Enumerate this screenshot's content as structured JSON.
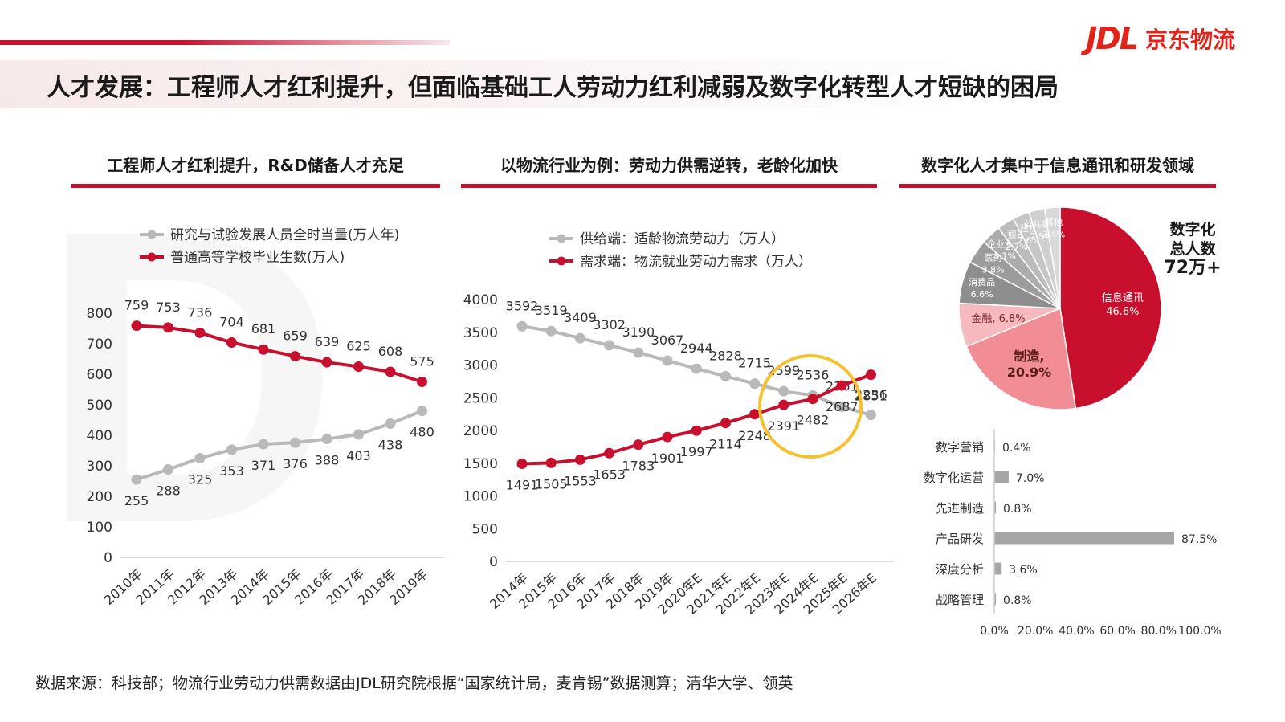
{
  "header": {
    "logo_mark": "JDL",
    "logo_text": "京东物流",
    "page_title": "人才发展：工程师人才红利提升，但面临基础工人劳动力红利减弱及数字化转型人才短缺的困局"
  },
  "sections": {
    "left_title": "工程师人才红利提升，R&D储备人才充足",
    "mid_title": "以物流行业为例：劳动力供需逆转，老龄化加快",
    "right_title": "数字化人才集中于信息通讯和研发领域"
  },
  "digital_total": {
    "line1": "数字化",
    "line2": "总人数",
    "line3": "72万+"
  },
  "source": "数据来源：科技部；物流行业劳动力供需数据由JDL研究院根据“国家统计局，麦肯锡”数据测算；清华大学、领英",
  "colors": {
    "red": "#c8102e",
    "gray": "#b9b9b9",
    "highlight": "#f5c12e"
  },
  "chart_data": [
    {
      "id": "left",
      "type": "line",
      "categories": [
        "2010年",
        "2011年",
        "2012年",
        "2013年",
        "2014年",
        "2015年",
        "2016年",
        "2017年",
        "2018年",
        "2019年"
      ],
      "series": [
        {
          "name": "研究与试验发展人员全时当量(万人年)",
          "color": "#b9b9b9",
          "values": [
            255,
            288,
            325,
            353,
            371,
            376,
            388,
            403,
            438,
            480
          ]
        },
        {
          "name": "普通高等学校毕业生数(万人)",
          "color": "#c8102e",
          "values": [
            759,
            753,
            736,
            704,
            681,
            659,
            639,
            625,
            608,
            575
          ]
        }
      ],
      "yticks": [
        0,
        100,
        200,
        300,
        400,
        500,
        600,
        700,
        800
      ],
      "ylim": [
        0,
        800
      ]
    },
    {
      "id": "mid",
      "type": "line",
      "categories": [
        "2014年",
        "2015年",
        "2016年",
        "2017年",
        "2018年",
        "2019年",
        "2020年E",
        "2021年E",
        "2022年E",
        "2023年E",
        "2024年E",
        "2025年E",
        "2026年E"
      ],
      "series": [
        {
          "name": "供给端：适龄物流劳动力（万人）",
          "color": "#b9b9b9",
          "values": [
            3592,
            3519,
            3409,
            3302,
            3190,
            3067,
            2944,
            2828,
            2715,
            2599,
            2536,
            2361,
            2236
          ]
        },
        {
          "name": "需求端：物流就业劳动力需求（万人）",
          "color": "#c8102e",
          "values": [
            1491,
            1505,
            1553,
            1653,
            1783,
            1901,
            1997,
            2114,
            2248,
            2391,
            2482,
            2687,
            2851
          ]
        }
      ],
      "yticks": [
        0,
        500,
        1000,
        1500,
        2000,
        2500,
        3000,
        3500,
        4000
      ],
      "ylim": [
        0,
        4000
      ]
    },
    {
      "id": "pie",
      "type": "pie",
      "slices": [
        {
          "label": "信息通讯",
          "value": 46.6,
          "color": "#c8102e"
        },
        {
          "label": "制造",
          "value": 20.9,
          "color": "#f08d95"
        },
        {
          "label": "金融",
          "value": 6.8,
          "color": "#f6b9bd"
        },
        {
          "label": "消费品",
          "value": 6.6,
          "color": "#8e8e8e"
        },
        {
          "label": "医药",
          "value": 3.8,
          "color": "#9c9c9c"
        },
        {
          "label": "企业服务",
          "value": 3.1,
          "color": "#acacac"
        },
        {
          "label": "娱乐",
          "value": 2.7,
          "color": "#bcbcbc"
        },
        {
          "label": "建筑",
          "value": 2.6,
          "color": "#c6c6c6"
        },
        {
          "label": "公共事业",
          "value": 2.5,
          "color": "#d0d0d0"
        },
        {
          "label": "其他",
          "value": 2.4,
          "color": "#d9d9d9"
        }
      ]
    },
    {
      "id": "bars",
      "type": "bar",
      "categories": [
        "数字营销",
        "数字化运营",
        "先进制造",
        "产品研发",
        "深度分析",
        "战略管理"
      ],
      "values": [
        0.4,
        7.0,
        0.8,
        87.5,
        3.6,
        0.8
      ],
      "value_labels": [
        "0.4%",
        "7.0%",
        "0.8%",
        "87.5%",
        "3.6%",
        "0.8%"
      ],
      "xticks": [
        "0.0%",
        "20.0%",
        "40.0%",
        "60.0%",
        "80.0%",
        "100.0%"
      ],
      "xlim": [
        0,
        100
      ]
    }
  ]
}
